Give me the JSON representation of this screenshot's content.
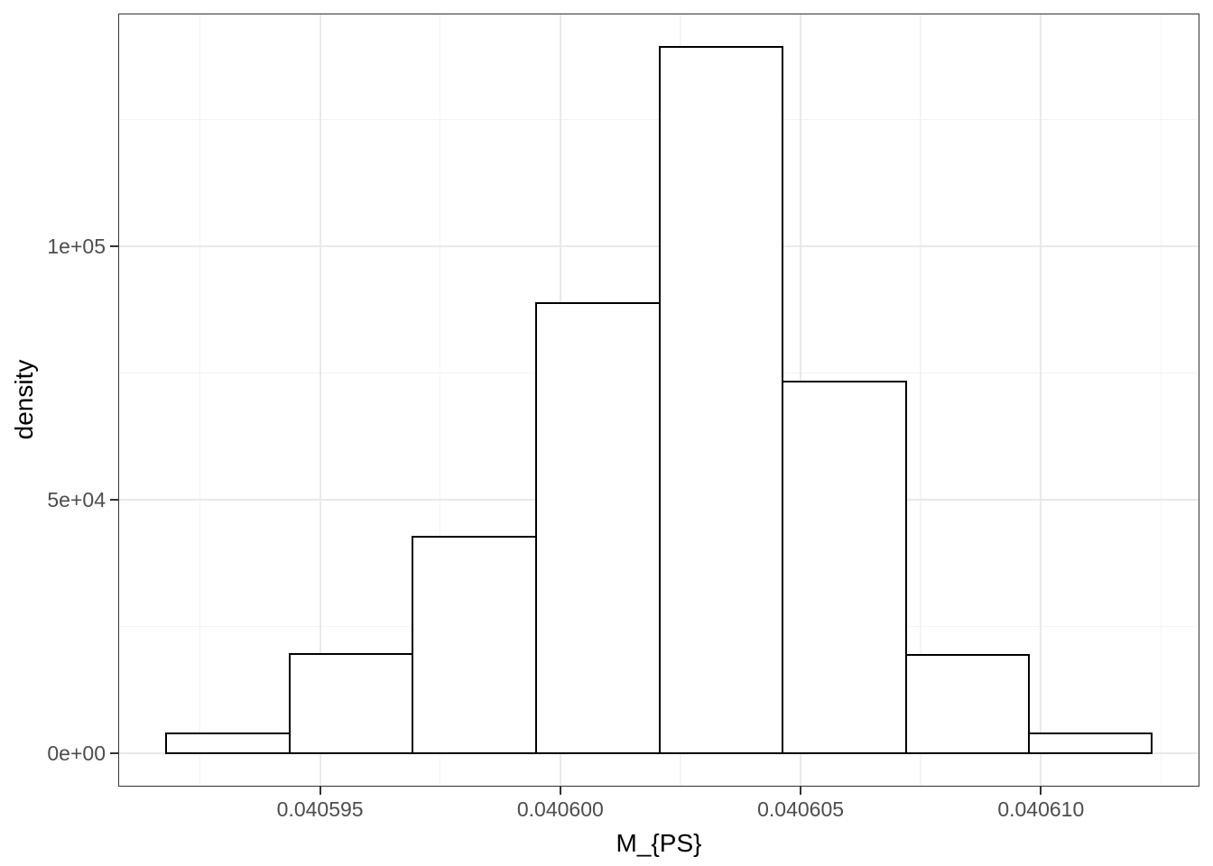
{
  "figure": {
    "background": "#ffffff"
  },
  "chart_data": {
    "type": "bar",
    "subtype": "histogram",
    "title": "",
    "xlabel": "M_{PS}",
    "ylabel": "density",
    "bin_edges": [
      0.0405918,
      0.04059437,
      0.04059693,
      0.0405995,
      0.04060206,
      0.04060462,
      0.04060719,
      0.04060975,
      0.04061231
    ],
    "values": [
      3900,
      19600,
      42700,
      88800,
      139300,
      73300,
      19400,
      3900
    ],
    "xlim": [
      0.0405908,
      0.0406133
    ],
    "ylim": [
      -6600,
      145900
    ],
    "x_ticks": {
      "values": [
        0.040595,
        0.0406,
        0.040605,
        0.04061
      ],
      "labels": [
        "0.040595",
        "0.040600",
        "0.040605",
        "0.040610"
      ]
    },
    "y_ticks": {
      "values": [
        0,
        50000,
        100000
      ],
      "labels": [
        "0e+00",
        "5e+04",
        "1e+05"
      ]
    },
    "x_minor_ticks": [
      0.0405925,
      0.0405975,
      0.0406025,
      0.0406075,
      0.0406125
    ],
    "y_minor_ticks": [
      25000,
      75000,
      125000
    ],
    "legend": "none",
    "grid": true,
    "colors": {
      "bar_fill": "#ffffff",
      "bar_stroke": "#000000",
      "grid_major": "#e9e9e9",
      "grid_minor": "#f4f4f4",
      "panel_border": "#333333",
      "tick_mark": "#333333",
      "tick_label": "#4d4d4d",
      "axis_title": "#000000"
    }
  }
}
